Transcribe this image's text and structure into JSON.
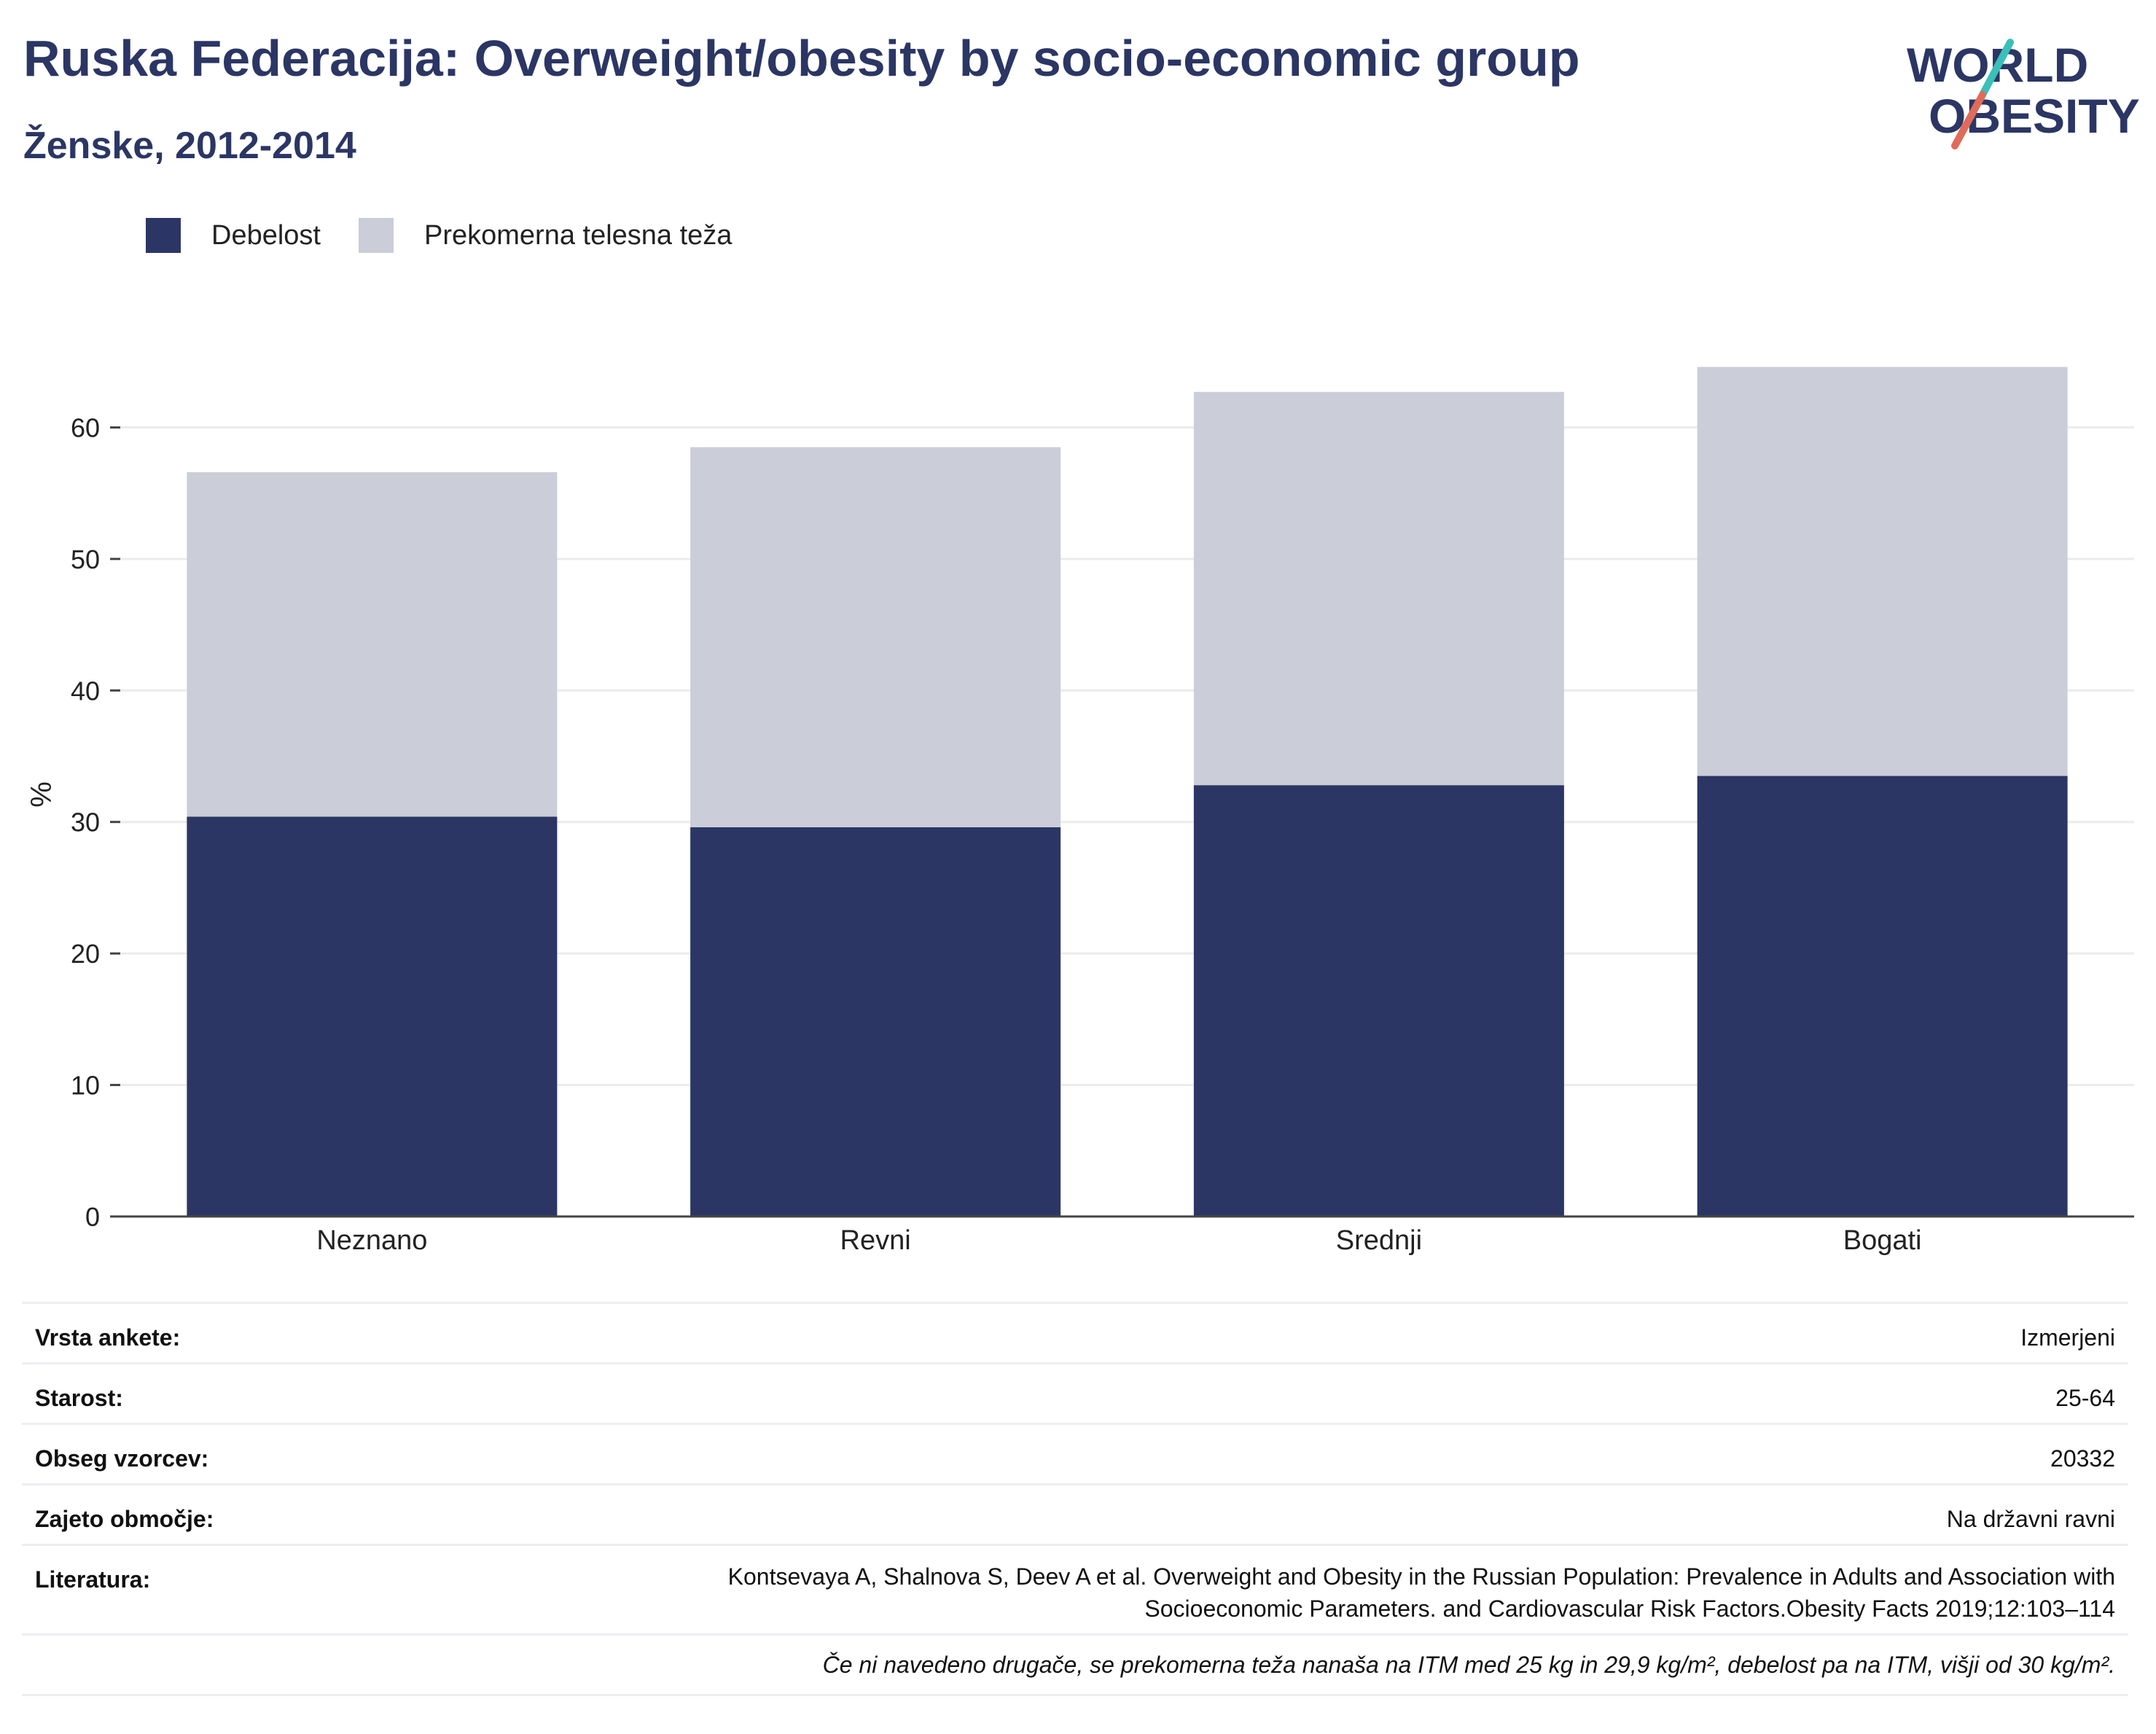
{
  "header": {
    "title": "Ruska Federacija: Overweight/obesity by socio-economic group",
    "subtitle": "Ženske, 2012-2014"
  },
  "logo": {
    "line1": "WORLD",
    "line2": "OBESITY",
    "accent_teal": "#3bbfb9",
    "accent_coral": "#e06b5a"
  },
  "colors": {
    "obesity": "#2b3664",
    "overweight": "#cbcdd8",
    "grid": "#ebebeb",
    "axis": "#444444"
  },
  "chart_data": {
    "type": "bar",
    "stacked": true,
    "categories": [
      "Neznano",
      "Revni",
      "Srednji",
      "Bogati"
    ],
    "series": [
      {
        "name": "Debelost",
        "values": [
          30.4,
          29.6,
          32.8,
          33.5
        ]
      },
      {
        "name": "Prekomerna telesna teža",
        "values": [
          26.2,
          28.9,
          29.9,
          31.1
        ]
      }
    ],
    "ylabel": "%",
    "ylim": [
      0,
      70
    ],
    "yticks": [
      0,
      10,
      20,
      30,
      40,
      50,
      60
    ],
    "grid": true,
    "legend": "top-left"
  },
  "info": {
    "rows": [
      {
        "key": "Vrsta ankete:",
        "value": "Izmerjeni"
      },
      {
        "key": "Starost:",
        "value": "25-64"
      },
      {
        "key": "Obseg vzorcev:",
        "value": "20332"
      },
      {
        "key": "Zajeto območje:",
        "value": "Na državni ravni"
      }
    ],
    "literature": {
      "key": "Literatura:",
      "line1": "Kontsevaya A, Shalnova S, Deev A et al. Overweight and Obesity in the Russian Population: Prevalence in Adults and Association with",
      "line2": "Socioeconomic Parameters. and Cardiovascular Risk Factors.Obesity Facts 2019;12:103–114"
    },
    "note": "Če ni navedeno drugače, se prekomerna teža nanaša na ITM med 25 kg in 29,9 kg/m², debelost pa na ITM, višji od 30 kg/m²."
  }
}
